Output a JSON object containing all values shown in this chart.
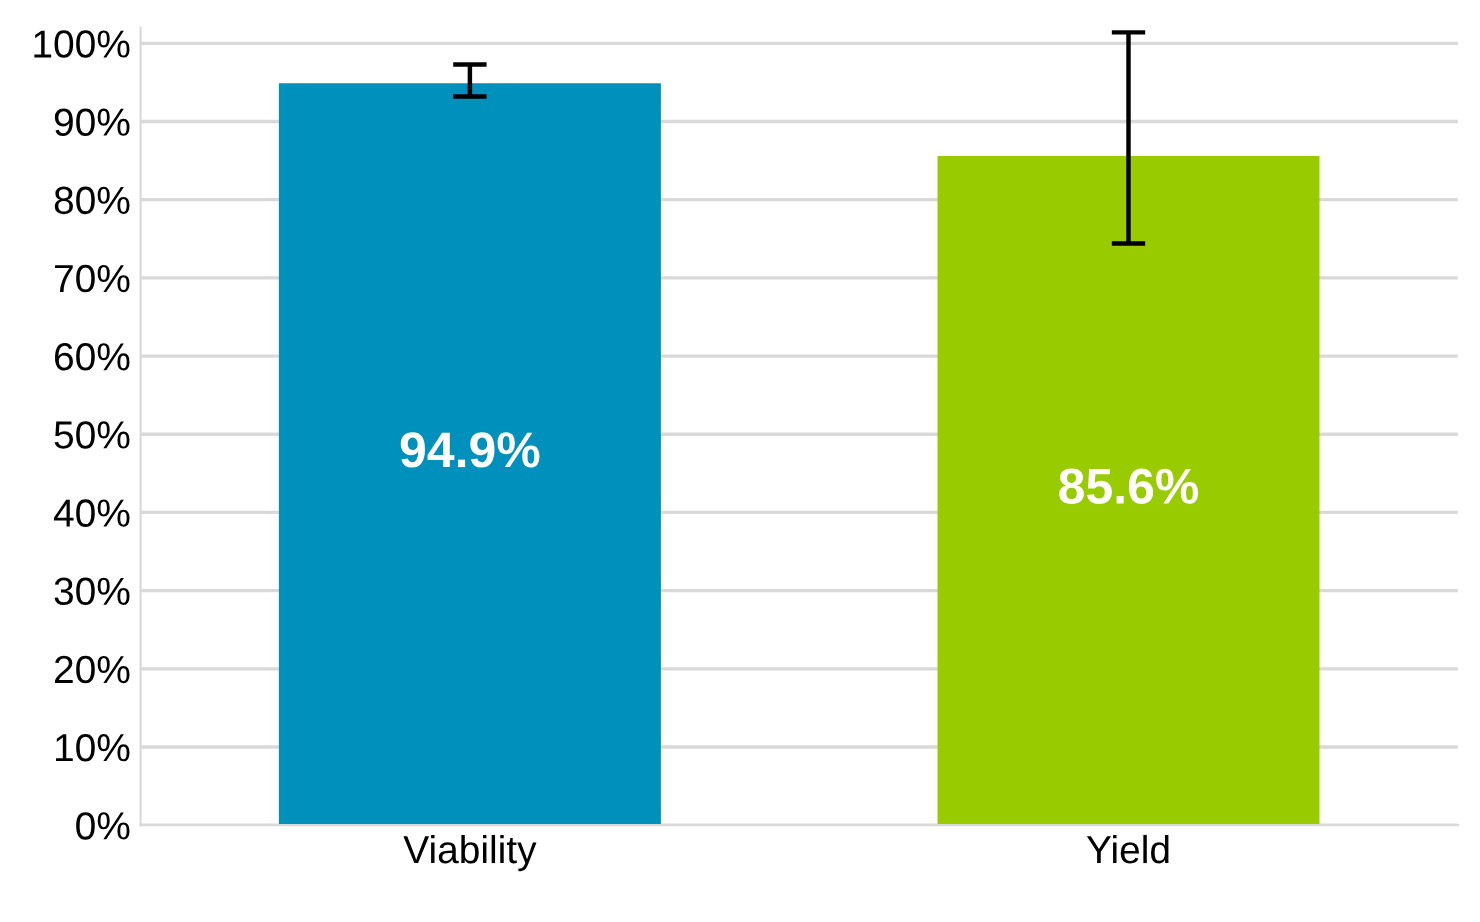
{
  "chart_data": {
    "type": "bar",
    "categories": [
      "Viability",
      "Yield"
    ],
    "values": [
      94.9,
      85.6
    ],
    "colors": [
      "#0090bc",
      "#99cc00"
    ],
    "errors": [
      [
        93.2,
        97.3
      ],
      [
        74.4,
        101.4
      ]
    ],
    "value_labels": [
      "94.9%",
      "85.6%"
    ],
    "ylim": [
      0,
      102
    ],
    "yticks": [
      {
        "value": 0,
        "label": "0%"
      },
      {
        "value": 10,
        "label": "10%"
      },
      {
        "value": 20,
        "label": "20%"
      },
      {
        "value": 30,
        "label": "30%"
      },
      {
        "value": 40,
        "label": "40%"
      },
      {
        "value": 50,
        "label": "50%"
      },
      {
        "value": 60,
        "label": "60%"
      },
      {
        "value": 70,
        "label": "70%"
      },
      {
        "value": 80,
        "label": "80%"
      },
      {
        "value": 90,
        "label": "90%"
      },
      {
        "value": 100,
        "label": "100%"
      }
    ],
    "grid": "y"
  }
}
